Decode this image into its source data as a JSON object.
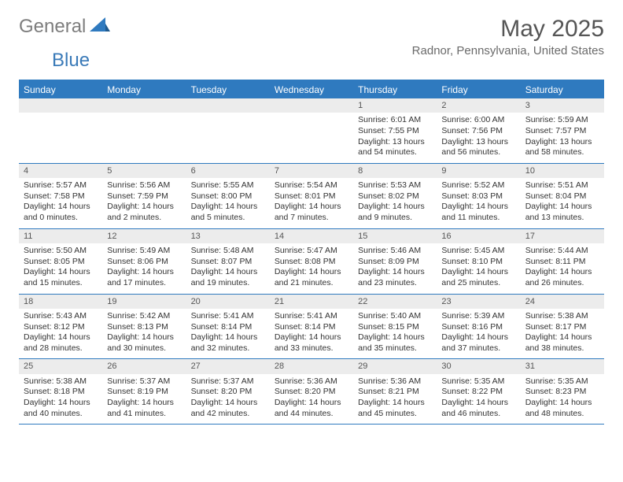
{
  "logo": {
    "gray": "General",
    "blue": "Blue"
  },
  "title": "May 2025",
  "location": "Radnor, Pennsylvania, United States",
  "day_headers": [
    "Sunday",
    "Monday",
    "Tuesday",
    "Wednesday",
    "Thursday",
    "Friday",
    "Saturday"
  ],
  "colors": {
    "header_bg": "#2f7abf",
    "header_text": "#ffffff",
    "daynum_bg": "#ececec",
    "border": "#2f7abf",
    "text": "#333333"
  },
  "weeks": [
    [
      {
        "empty": true
      },
      {
        "empty": true
      },
      {
        "empty": true
      },
      {
        "empty": true
      },
      {
        "day": "1",
        "sunrise": "Sunrise: 6:01 AM",
        "sunset": "Sunset: 7:55 PM",
        "daylight": "Daylight: 13 hours and 54 minutes."
      },
      {
        "day": "2",
        "sunrise": "Sunrise: 6:00 AM",
        "sunset": "Sunset: 7:56 PM",
        "daylight": "Daylight: 13 hours and 56 minutes."
      },
      {
        "day": "3",
        "sunrise": "Sunrise: 5:59 AM",
        "sunset": "Sunset: 7:57 PM",
        "daylight": "Daylight: 13 hours and 58 minutes."
      }
    ],
    [
      {
        "day": "4",
        "sunrise": "Sunrise: 5:57 AM",
        "sunset": "Sunset: 7:58 PM",
        "daylight": "Daylight: 14 hours and 0 minutes."
      },
      {
        "day": "5",
        "sunrise": "Sunrise: 5:56 AM",
        "sunset": "Sunset: 7:59 PM",
        "daylight": "Daylight: 14 hours and 2 minutes."
      },
      {
        "day": "6",
        "sunrise": "Sunrise: 5:55 AM",
        "sunset": "Sunset: 8:00 PM",
        "daylight": "Daylight: 14 hours and 5 minutes."
      },
      {
        "day": "7",
        "sunrise": "Sunrise: 5:54 AM",
        "sunset": "Sunset: 8:01 PM",
        "daylight": "Daylight: 14 hours and 7 minutes."
      },
      {
        "day": "8",
        "sunrise": "Sunrise: 5:53 AM",
        "sunset": "Sunset: 8:02 PM",
        "daylight": "Daylight: 14 hours and 9 minutes."
      },
      {
        "day": "9",
        "sunrise": "Sunrise: 5:52 AM",
        "sunset": "Sunset: 8:03 PM",
        "daylight": "Daylight: 14 hours and 11 minutes."
      },
      {
        "day": "10",
        "sunrise": "Sunrise: 5:51 AM",
        "sunset": "Sunset: 8:04 PM",
        "daylight": "Daylight: 14 hours and 13 minutes."
      }
    ],
    [
      {
        "day": "11",
        "sunrise": "Sunrise: 5:50 AM",
        "sunset": "Sunset: 8:05 PM",
        "daylight": "Daylight: 14 hours and 15 minutes."
      },
      {
        "day": "12",
        "sunrise": "Sunrise: 5:49 AM",
        "sunset": "Sunset: 8:06 PM",
        "daylight": "Daylight: 14 hours and 17 minutes."
      },
      {
        "day": "13",
        "sunrise": "Sunrise: 5:48 AM",
        "sunset": "Sunset: 8:07 PM",
        "daylight": "Daylight: 14 hours and 19 minutes."
      },
      {
        "day": "14",
        "sunrise": "Sunrise: 5:47 AM",
        "sunset": "Sunset: 8:08 PM",
        "daylight": "Daylight: 14 hours and 21 minutes."
      },
      {
        "day": "15",
        "sunrise": "Sunrise: 5:46 AM",
        "sunset": "Sunset: 8:09 PM",
        "daylight": "Daylight: 14 hours and 23 minutes."
      },
      {
        "day": "16",
        "sunrise": "Sunrise: 5:45 AM",
        "sunset": "Sunset: 8:10 PM",
        "daylight": "Daylight: 14 hours and 25 minutes."
      },
      {
        "day": "17",
        "sunrise": "Sunrise: 5:44 AM",
        "sunset": "Sunset: 8:11 PM",
        "daylight": "Daylight: 14 hours and 26 minutes."
      }
    ],
    [
      {
        "day": "18",
        "sunrise": "Sunrise: 5:43 AM",
        "sunset": "Sunset: 8:12 PM",
        "daylight": "Daylight: 14 hours and 28 minutes."
      },
      {
        "day": "19",
        "sunrise": "Sunrise: 5:42 AM",
        "sunset": "Sunset: 8:13 PM",
        "daylight": "Daylight: 14 hours and 30 minutes."
      },
      {
        "day": "20",
        "sunrise": "Sunrise: 5:41 AM",
        "sunset": "Sunset: 8:14 PM",
        "daylight": "Daylight: 14 hours and 32 minutes."
      },
      {
        "day": "21",
        "sunrise": "Sunrise: 5:41 AM",
        "sunset": "Sunset: 8:14 PM",
        "daylight": "Daylight: 14 hours and 33 minutes."
      },
      {
        "day": "22",
        "sunrise": "Sunrise: 5:40 AM",
        "sunset": "Sunset: 8:15 PM",
        "daylight": "Daylight: 14 hours and 35 minutes."
      },
      {
        "day": "23",
        "sunrise": "Sunrise: 5:39 AM",
        "sunset": "Sunset: 8:16 PM",
        "daylight": "Daylight: 14 hours and 37 minutes."
      },
      {
        "day": "24",
        "sunrise": "Sunrise: 5:38 AM",
        "sunset": "Sunset: 8:17 PM",
        "daylight": "Daylight: 14 hours and 38 minutes."
      }
    ],
    [
      {
        "day": "25",
        "sunrise": "Sunrise: 5:38 AM",
        "sunset": "Sunset: 8:18 PM",
        "daylight": "Daylight: 14 hours and 40 minutes."
      },
      {
        "day": "26",
        "sunrise": "Sunrise: 5:37 AM",
        "sunset": "Sunset: 8:19 PM",
        "daylight": "Daylight: 14 hours and 41 minutes."
      },
      {
        "day": "27",
        "sunrise": "Sunrise: 5:37 AM",
        "sunset": "Sunset: 8:20 PM",
        "daylight": "Daylight: 14 hours and 42 minutes."
      },
      {
        "day": "28",
        "sunrise": "Sunrise: 5:36 AM",
        "sunset": "Sunset: 8:20 PM",
        "daylight": "Daylight: 14 hours and 44 minutes."
      },
      {
        "day": "29",
        "sunrise": "Sunrise: 5:36 AM",
        "sunset": "Sunset: 8:21 PM",
        "daylight": "Daylight: 14 hours and 45 minutes."
      },
      {
        "day": "30",
        "sunrise": "Sunrise: 5:35 AM",
        "sunset": "Sunset: 8:22 PM",
        "daylight": "Daylight: 14 hours and 46 minutes."
      },
      {
        "day": "31",
        "sunrise": "Sunrise: 5:35 AM",
        "sunset": "Sunset: 8:23 PM",
        "daylight": "Daylight: 14 hours and 48 minutes."
      }
    ]
  ]
}
